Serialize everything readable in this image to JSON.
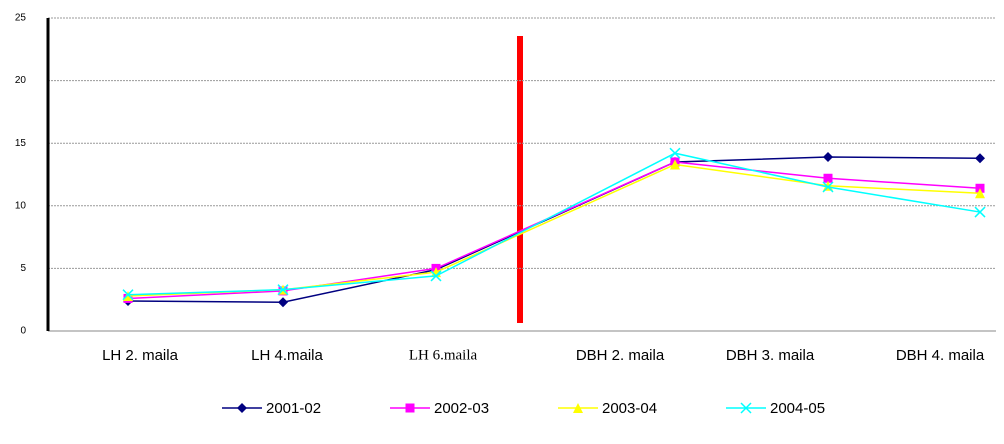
{
  "chart_data": {
    "type": "line",
    "categories": [
      "LH 2. maila",
      "LH 4.maila",
      "LH 6.maila",
      "DBH  2. maila",
      "DBH 3. maila",
      "DBH 4. maila"
    ],
    "series": [
      {
        "name": "2001-02",
        "color": "#000080",
        "marker": "diamond",
        "values": [
          2.4,
          2.3,
          4.9,
          13.5,
          13.9,
          13.8
        ]
      },
      {
        "name": "2002-03",
        "color": "#ff00ff",
        "marker": "square",
        "values": [
          2.6,
          3.2,
          5.0,
          13.5,
          12.2,
          11.4
        ]
      },
      {
        "name": "2003-04",
        "color": "#ffff00",
        "marker": "triangle",
        "values": [
          2.8,
          3.3,
          4.7,
          13.3,
          11.6,
          11.0
        ]
      },
      {
        "name": "2004-05",
        "color": "#00ffff",
        "marker": "x",
        "values": [
          2.9,
          3.3,
          4.4,
          14.2,
          11.5,
          9.5
        ]
      }
    ],
    "ylim": [
      0,
      25
    ],
    "yticks": [
      0,
      5,
      10,
      15,
      20,
      25
    ],
    "grid": true,
    "legend": "bottom"
  }
}
